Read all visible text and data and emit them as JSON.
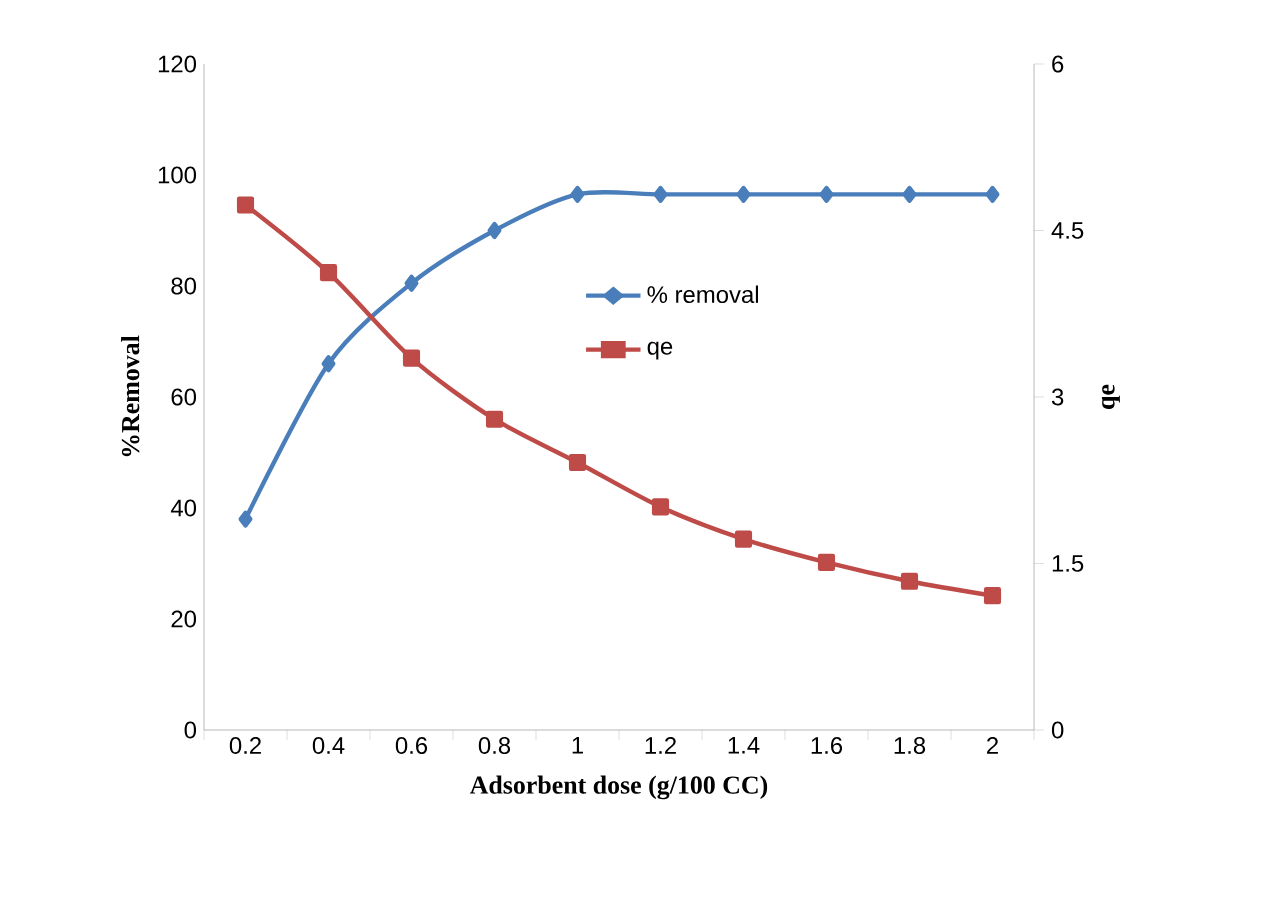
{
  "chart_data": {
    "type": "line",
    "xlabel": "Adsorbent dose (g/100 CC)",
    "ylabel": "%Removal",
    "y2label": "qe",
    "categories": [
      "0.2",
      "0.4",
      "0.6",
      "0.8",
      "1",
      "1.2",
      "1.4",
      "1.6",
      "1.8",
      "2"
    ],
    "series": [
      {
        "name": "% removal",
        "color": "#4a7ebb",
        "marker": "diamond",
        "values": [
          38,
          66,
          80.5,
          90,
          96.5,
          96.5,
          96.5,
          96.5,
          96.5,
          96.5
        ]
      },
      {
        "name": "qe",
        "color": "#be4b48",
        "marker": "square",
        "axis": "y2",
        "values": [
          4.73,
          4.12,
          3.35,
          2.8,
          2.41,
          2.01,
          1.72,
          1.51,
          1.34,
          1.21
        ]
      }
    ],
    "ylim": [
      0,
      120
    ],
    "yticks": [
      0,
      20,
      40,
      60,
      80,
      100,
      120
    ],
    "y2lim": [
      0,
      6
    ],
    "y2ticks": [
      0,
      1.5,
      3,
      4.5,
      6
    ],
    "legend": "center",
    "grid": false
  }
}
